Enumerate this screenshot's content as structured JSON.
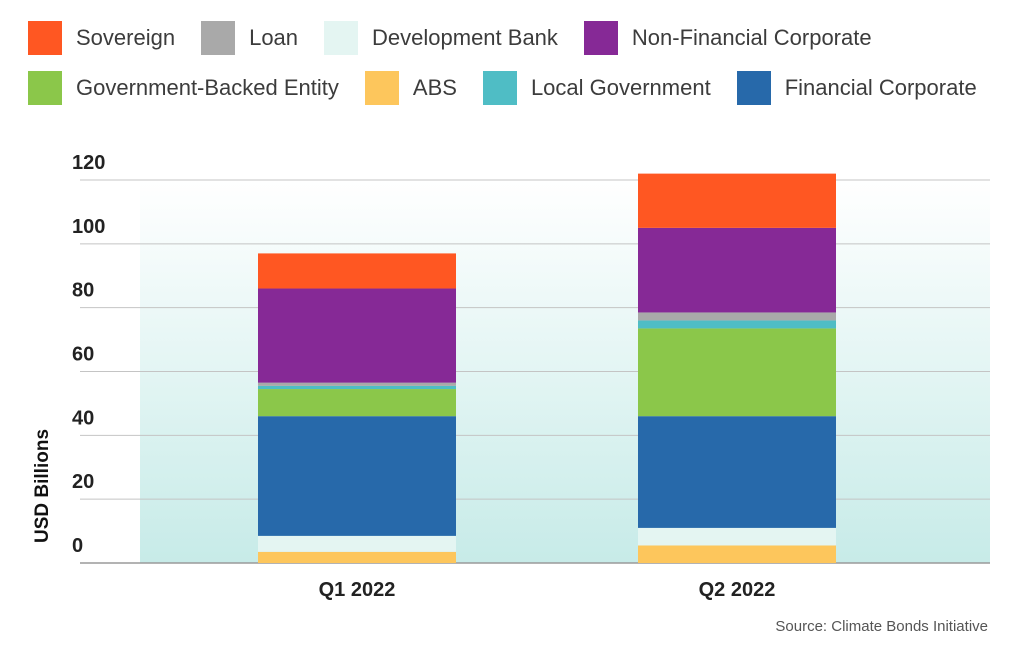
{
  "source": "Source: Climate Bonds Initiative",
  "chart_data": {
    "type": "stacked-bar",
    "ylabel": "USD Billions",
    "ylim": [
      0,
      120
    ],
    "yticks": [
      0,
      20,
      40,
      60,
      80,
      100,
      120
    ],
    "categories": [
      "Q1 2022",
      "Q2 2022"
    ],
    "legend": [
      {
        "name": "Sovereign",
        "color": "#ff5722"
      },
      {
        "name": "Loan",
        "color": "#a9a9a9"
      },
      {
        "name": "Development Bank",
        "color": "#e4f5f2"
      },
      {
        "name": "Non-Financial Corporate",
        "color": "#862996"
      },
      {
        "name": "Government-Backed Entity",
        "color": "#8bc74a"
      },
      {
        "name": "ABS",
        "color": "#fdc65c"
      },
      {
        "name": "Local Government",
        "color": "#4fbdc5"
      },
      {
        "name": "Financial Corporate",
        "color": "#2769aa"
      }
    ],
    "stack_order": [
      "ABS",
      "Development Bank",
      "Financial Corporate",
      "Government-Backed Entity",
      "Local Government",
      "Loan",
      "Non-Financial Corporate",
      "Sovereign"
    ],
    "series": [
      {
        "name": "ABS",
        "values": [
          3.5,
          5.5
        ]
      },
      {
        "name": "Development Bank",
        "values": [
          5,
          5.5
        ]
      },
      {
        "name": "Financial Corporate",
        "values": [
          37.5,
          35
        ]
      },
      {
        "name": "Government-Backed Entity",
        "values": [
          8.5,
          27.5
        ]
      },
      {
        "name": "Local Government",
        "values": [
          1,
          2.5
        ]
      },
      {
        "name": "Loan",
        "values": [
          1,
          2.5
        ]
      },
      {
        "name": "Non-Financial Corporate",
        "values": [
          29.5,
          26.5
        ]
      },
      {
        "name": "Sovereign",
        "values": [
          11,
          17
        ]
      }
    ]
  }
}
